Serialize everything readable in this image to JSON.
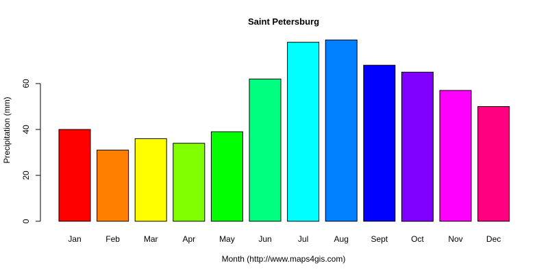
{
  "chart_data": {
    "type": "bar",
    "title": "Saint Petersburg",
    "xlabel": "Month (http://www.maps4gis.com)",
    "ylabel": "Precipitation (mm)",
    "categories": [
      "Jan",
      "Feb",
      "Mar",
      "Apr",
      "May",
      "Jun",
      "Jul",
      "Aug",
      "Sept",
      "Oct",
      "Nov",
      "Dec"
    ],
    "values": [
      40,
      31,
      36,
      34,
      39,
      62,
      78,
      79,
      68,
      65,
      57,
      50
    ],
    "colors": [
      "#FF0000",
      "#FF8000",
      "#FFFF00",
      "#80FF00",
      "#00FF00",
      "#00FF80",
      "#00FFFF",
      "#0080FF",
      "#0000FF",
      "#8000FF",
      "#FF00FF",
      "#FF0080"
    ],
    "yticks": [
      "0",
      "20",
      "40",
      "60"
    ],
    "ylim": [
      0,
      80
    ],
    "grid": false,
    "legend": "none"
  }
}
